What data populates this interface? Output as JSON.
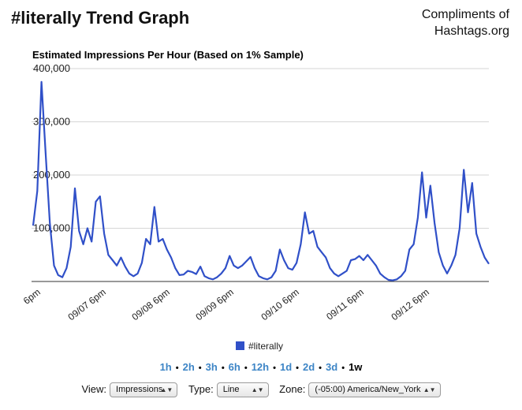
{
  "header": {
    "title": "#literally Trend Graph",
    "credit_line1": "Compliments of",
    "credit_line2": "Hashtags.org"
  },
  "chart_data": {
    "type": "line",
    "title": "Estimated Impressions Per Hour (Based on 1% Sample)",
    "xlabel": "",
    "ylabel": "",
    "ylim": [
      0,
      400000
    ],
    "y_ticks": [
      "100,000",
      "200,000",
      "300,000",
      "400,000"
    ],
    "x_ticks": [
      "6pm",
      "09/07 6pm",
      "09/08 6pm",
      "09/09 6pm",
      "09/10 6pm",
      "09/11 6pm",
      "09/12 6pm"
    ],
    "grid": true,
    "legend": "bottom",
    "series": [
      {
        "name": "#literally",
        "color": "#3050c8",
        "values": [
          105000,
          170000,
          375000,
          240000,
          110000,
          30000,
          12000,
          8000,
          25000,
          65000,
          175000,
          95000,
          70000,
          100000,
          75000,
          150000,
          160000,
          90000,
          50000,
          40000,
          30000,
          45000,
          28000,
          15000,
          10000,
          15000,
          35000,
          80000,
          70000,
          140000,
          75000,
          80000,
          60000,
          45000,
          25000,
          12000,
          13000,
          20000,
          18000,
          14000,
          28000,
          10000,
          6000,
          4000,
          8000,
          15000,
          25000,
          48000,
          30000,
          25000,
          30000,
          38000,
          46000,
          25000,
          10000,
          6000,
          4000,
          8000,
          20000,
          60000,
          40000,
          25000,
          22000,
          35000,
          70000,
          130000,
          90000,
          95000,
          65000,
          55000,
          45000,
          25000,
          15000,
          10000,
          15000,
          20000,
          40000,
          42000,
          48000,
          40000,
          50000,
          40000,
          30000,
          15000,
          8000,
          3000,
          2000,
          4000,
          10000,
          20000,
          60000,
          70000,
          120000,
          205000,
          120000,
          180000,
          110000,
          55000,
          30000,
          15000,
          30000,
          50000,
          100000,
          210000,
          130000,
          185000,
          90000,
          65000,
          45000,
          33000
        ]
      }
    ]
  },
  "ranges": {
    "items": [
      "1h",
      "2h",
      "3h",
      "6h",
      "12h",
      "1d",
      "2d",
      "3d",
      "1w"
    ],
    "active": "1w"
  },
  "controls": {
    "view_label": "View:",
    "view_value": "Impressions",
    "type_label": "Type:",
    "type_value": "Line",
    "zone_label": "Zone:",
    "zone_value": "(-05:00) America/New_York"
  }
}
